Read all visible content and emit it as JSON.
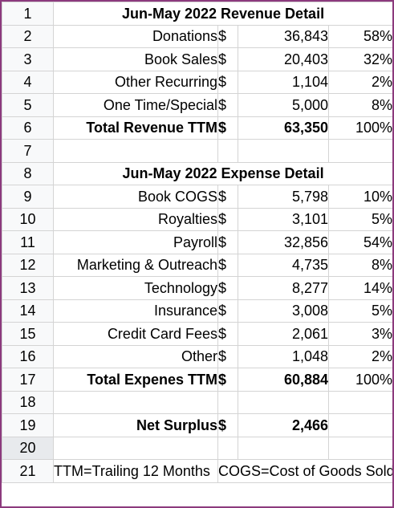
{
  "revenue": {
    "title": "Jun-May 2022 Revenue Detail",
    "items": [
      {
        "label": "Donations",
        "currency": "$",
        "amount": "36,843",
        "pct": "58%"
      },
      {
        "label": "Book Sales",
        "currency": "$",
        "amount": "20,403",
        "pct": "32%"
      },
      {
        "label": "Other Recurring",
        "currency": "$",
        "amount": "1,104",
        "pct": "2%"
      },
      {
        "label": "One Time/Special",
        "currency": "$",
        "amount": "5,000",
        "pct": "8%"
      }
    ],
    "total": {
      "label": "Total Revenue TTM",
      "currency": "$",
      "amount": "63,350",
      "pct": "100%"
    }
  },
  "expense": {
    "title": "Jun-May 2022 Expense Detail",
    "items": [
      {
        "label": "Book COGS",
        "currency": "$",
        "amount": "5,798",
        "pct": "10%"
      },
      {
        "label": "Royalties",
        "currency": "$",
        "amount": "3,101",
        "pct": "5%"
      },
      {
        "label": "Payroll",
        "currency": "$",
        "amount": "32,856",
        "pct": "54%"
      },
      {
        "label": "Marketing & Outreach",
        "currency": "$",
        "amount": "4,735",
        "pct": "8%"
      },
      {
        "label": "Technology",
        "currency": "$",
        "amount": "8,277",
        "pct": "14%"
      },
      {
        "label": "Insurance",
        "currency": "$",
        "amount": "3,008",
        "pct": "5%"
      },
      {
        "label": "Credit Card Fees",
        "currency": "$",
        "amount": "2,061",
        "pct": "3%"
      },
      {
        "label": "Other",
        "currency": "$",
        "amount": "1,048",
        "pct": "2%"
      }
    ],
    "total": {
      "label": "Total Expenes TTM",
      "currency": "$",
      "amount": "60,884",
      "pct": "100%"
    }
  },
  "net": {
    "label": "Net Surplus",
    "currency": "$",
    "amount": "2,466"
  },
  "notes": {
    "left": "TTM=Trailing 12 Months",
    "right": "COGS=Cost of Goods Sold"
  },
  "row_numbers": [
    "1",
    "2",
    "3",
    "4",
    "5",
    "6",
    "7",
    "8",
    "9",
    "10",
    "11",
    "12",
    "13",
    "14",
    "15",
    "16",
    "17",
    "18",
    "19",
    "20",
    "21"
  ]
}
